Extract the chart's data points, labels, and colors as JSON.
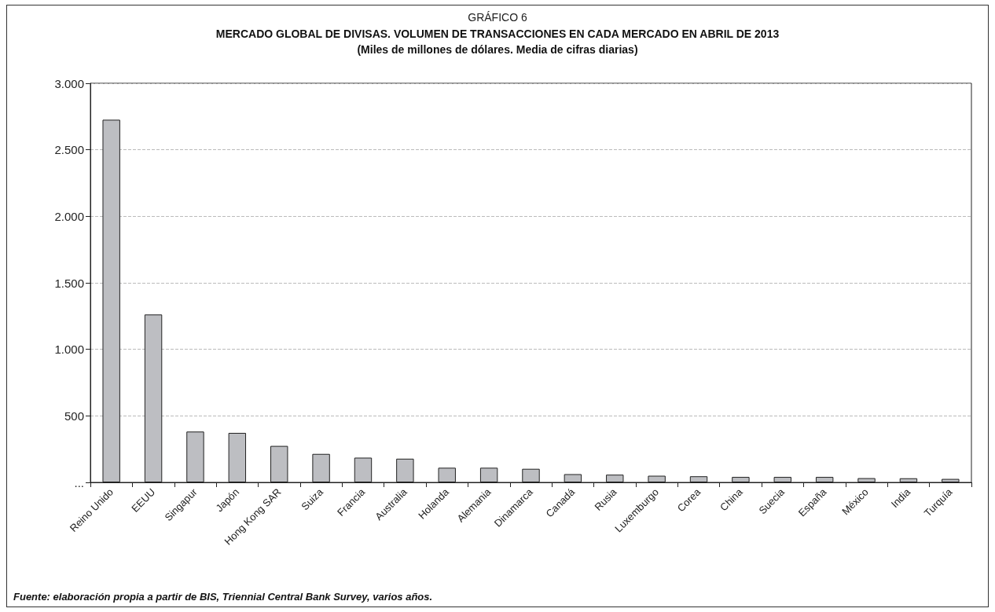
{
  "chart_data": {
    "type": "bar",
    "title": "GRÁFICO 6",
    "subtitle": "MERCADO GLOBAL DE DIVISAS. VOLUMEN DE TRANSACCIONES EN CADA MERCADO EN ABRIL DE 2013\n(Miles de millones de dólares. Media de cifras diarias)",
    "categories": [
      "Reino Unido",
      "EEUU",
      "Singapur",
      "Japón",
      "Hong Kong SAR",
      "Suiza",
      "Francia",
      "Australia",
      "Holanda",
      "Alemania",
      "Dinamarca",
      "Canadá",
      "Rusia",
      "Luxemburgo",
      "Corea",
      "China",
      "Suecia",
      "España",
      "México",
      "India",
      "Turquía"
    ],
    "values": [
      2726,
      1262,
      382,
      372,
      274,
      214,
      186,
      178,
      110,
      110,
      102,
      62,
      58,
      50,
      46,
      41,
      41,
      41,
      32,
      31,
      26
    ],
    "color": "#bdbec2",
    "ylim": [
      0,
      3000
    ],
    "yticks": [
      {
        "value": 0,
        "label": "..."
      },
      500,
      {
        "value": 1000,
        "label": "1.000"
      },
      {
        "value": 1500,
        "label": "1.500"
      },
      {
        "value": 2000,
        "label": "2.000"
      },
      {
        "value": 2500,
        "label": "2.500"
      },
      {
        "value": 3000,
        "label": "3.000"
      }
    ],
    "grid": "y",
    "annotations": [
      "Fuente: elaboración propia a partir de BIS, Triennial Central Bank Survey, varios años."
    ]
  }
}
